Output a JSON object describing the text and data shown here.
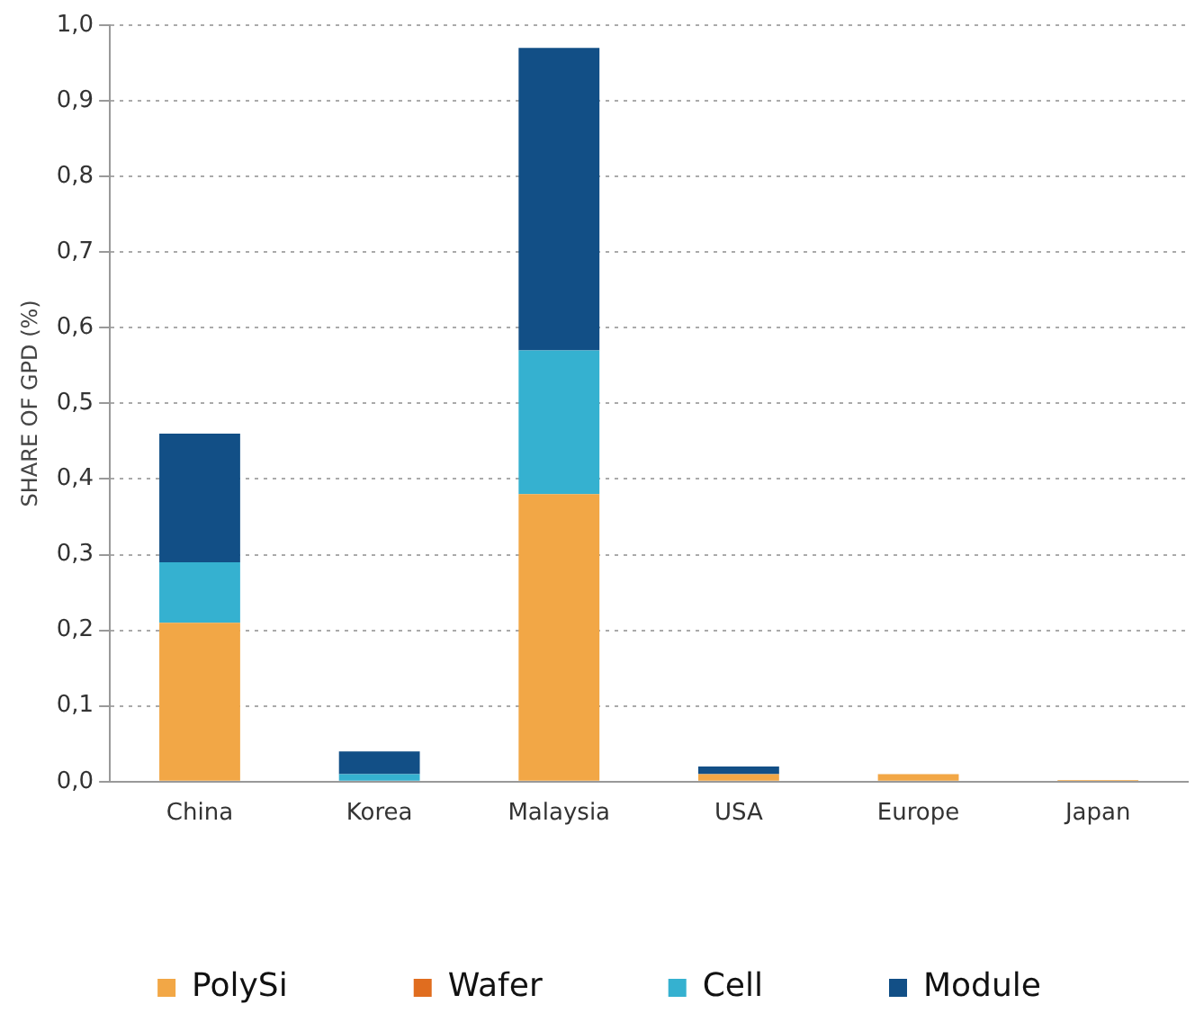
{
  "chart_data": {
    "type": "bar",
    "stacked": true,
    "ylabel": "SHARE OF GPD (%)",
    "categories": [
      "China",
      "Korea",
      "Malaysia",
      "USA",
      "Europe",
      "Japan"
    ],
    "series": [
      {
        "name": "PolySi",
        "color": "#f2a746",
        "values": [
          0.21,
          0,
          0.38,
          0.01,
          0.01,
          0.002
        ]
      },
      {
        "name": "Wafer",
        "color": "#e06d1f",
        "values": [
          0,
          0,
          0,
          0,
          0,
          0
        ]
      },
      {
        "name": "Cell",
        "color": "#35b1d0",
        "values": [
          0.08,
          0.01,
          0.19,
          0,
          0,
          0
        ]
      },
      {
        "name": "Module",
        "color": "#124f86",
        "values": [
          0.17,
          0.03,
          0.4,
          0.01,
          0,
          0
        ]
      }
    ],
    "ylim": [
      0,
      1
    ],
    "yticks": [
      {
        "value": 0,
        "label": "0,0"
      },
      {
        "value": 0.1,
        "label": "0,1"
      },
      {
        "value": 0.2,
        "label": "0,2"
      },
      {
        "value": 0.3,
        "label": "0,3"
      },
      {
        "value": 0.4,
        "label": "0,4"
      },
      {
        "value": 0.5,
        "label": "0,5"
      },
      {
        "value": 0.6,
        "label": "0,6"
      },
      {
        "value": 0.7,
        "label": "0,7"
      },
      {
        "value": 0.8,
        "label": "0,8"
      },
      {
        "value": 0.9,
        "label": "0,9"
      },
      {
        "value": 1,
        "label": "1,0"
      }
    ],
    "grid": "y",
    "legend": "bottom"
  }
}
